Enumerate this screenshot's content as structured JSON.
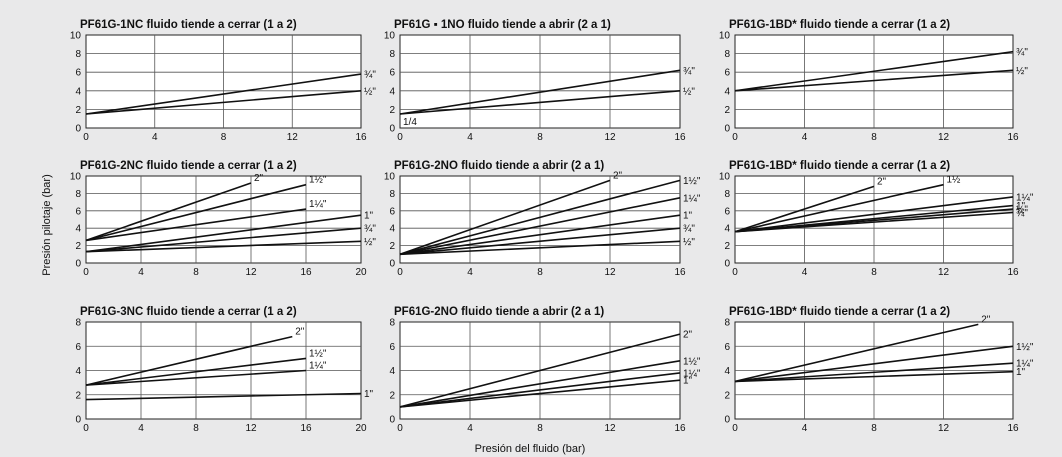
{
  "figure": {
    "ylabel": "Presión pilotaje (bar)",
    "xlabel": "Presión del fluido  (bar)"
  },
  "chart_data": [
    {
      "type": "line",
      "title": "PF61G-1NC fluido tiende a cerrar (1 a 2)",
      "xlim": [
        0,
        16
      ],
      "ylim": [
        0,
        10
      ],
      "xticks": [
        0,
        4,
        8,
        12,
        16
      ],
      "yticks": [
        0,
        2,
        4,
        6,
        8,
        10
      ],
      "series": [
        {
          "name": "¾\"",
          "x": [
            0,
            16
          ],
          "y": [
            1.5,
            5.8
          ]
        },
        {
          "name": "½\"",
          "x": [
            0,
            16
          ],
          "y": [
            1.5,
            4.0
          ]
        }
      ]
    },
    {
      "type": "line",
      "title": "PF61G ▪ 1NO fluido tiende a abrir (2 a 1)",
      "xlim": [
        0,
        16
      ],
      "ylim": [
        0,
        10
      ],
      "xticks": [
        0,
        4,
        8,
        12,
        16
      ],
      "yticks": [
        0,
        2,
        4,
        6,
        8,
        10
      ],
      "series": [
        {
          "name": "¾\"",
          "x": [
            0,
            16
          ],
          "y": [
            1.5,
            6.2
          ]
        },
        {
          "name": "½\"",
          "x": [
            0,
            16
          ],
          "y": [
            1.5,
            4.0
          ]
        },
        {
          "name": "1/4",
          "x": [
            0,
            0
          ],
          "y": [
            0,
            0
          ]
        }
      ]
    },
    {
      "type": "line",
      "title": "PF61G-1BD* fluido tiende a cerrar (1 a 2)",
      "xlim": [
        0,
        16
      ],
      "ylim": [
        0,
        10
      ],
      "xticks": [
        0,
        4,
        8,
        12,
        16
      ],
      "yticks": [
        0,
        2,
        4,
        6,
        8,
        10
      ],
      "series": [
        {
          "name": "¾\"",
          "x": [
            0,
            16
          ],
          "y": [
            4.0,
            8.2
          ]
        },
        {
          "name": "½\"",
          "x": [
            0,
            16
          ],
          "y": [
            4.0,
            6.2
          ]
        }
      ]
    },
    {
      "type": "line",
      "title": "PF61G-2NC fluido tiende a cerrar (1 a 2)",
      "xlim": [
        0,
        20
      ],
      "ylim": [
        0,
        10
      ],
      "xticks": [
        0,
        4,
        8,
        12,
        16,
        20
      ],
      "yticks": [
        0,
        2,
        4,
        6,
        8,
        10
      ],
      "series": [
        {
          "name": "2\"",
          "x": [
            0,
            12
          ],
          "y": [
            2.6,
            9.2
          ]
        },
        {
          "name": "1½\"",
          "x": [
            0,
            16
          ],
          "y": [
            2.6,
            9.0
          ]
        },
        {
          "name": "1¼\"",
          "x": [
            0,
            16
          ],
          "y": [
            2.6,
            6.2
          ]
        },
        {
          "name": "1\"",
          "x": [
            0,
            20
          ],
          "y": [
            1.3,
            5.5
          ]
        },
        {
          "name": "¾\"",
          "x": [
            0,
            20
          ],
          "y": [
            1.3,
            4.0
          ]
        },
        {
          "name": "½\"",
          "x": [
            0,
            20
          ],
          "y": [
            1.3,
            2.5
          ]
        }
      ]
    },
    {
      "type": "line",
      "title": "PF61G-2NO   fluido tiende a abrir (2 a 1)",
      "xlim": [
        0,
        16
      ],
      "ylim": [
        0,
        10
      ],
      "xticks": [
        0,
        4,
        8,
        12,
        16
      ],
      "yticks": [
        0,
        2,
        4,
        6,
        8,
        10
      ],
      "series": [
        {
          "name": "2\"",
          "x": [
            0,
            12
          ],
          "y": [
            1.0,
            9.5
          ]
        },
        {
          "name": "1½\"",
          "x": [
            0,
            16
          ],
          "y": [
            1.0,
            9.5
          ]
        },
        {
          "name": "1¼\"",
          "x": [
            0,
            16
          ],
          "y": [
            1.0,
            7.5
          ]
        },
        {
          "name": "1\"",
          "x": [
            0,
            16
          ],
          "y": [
            1.0,
            5.5
          ]
        },
        {
          "name": "¾\"",
          "x": [
            0,
            16
          ],
          "y": [
            1.0,
            4.0
          ]
        },
        {
          "name": "½\"",
          "x": [
            0,
            16
          ],
          "y": [
            1.0,
            2.5
          ]
        }
      ]
    },
    {
      "type": "line",
      "title": "PF61G-1BD* fluido tiende a cerrar (1 a 2)",
      "xlim": [
        0,
        16
      ],
      "ylim": [
        0,
        10
      ],
      "xticks": [
        0,
        4,
        8,
        12,
        16
      ],
      "yticks": [
        0,
        2,
        4,
        6,
        8,
        10
      ],
      "series": [
        {
          "name": "2\"",
          "x": [
            0,
            8
          ],
          "y": [
            3.6,
            8.8
          ]
        },
        {
          "name": "1½",
          "x": [
            0,
            12
          ],
          "y": [
            3.6,
            9.0
          ]
        },
        {
          "name": "1¼\"",
          "x": [
            0,
            16
          ],
          "y": [
            3.6,
            7.6
          ]
        },
        {
          "name": "1\"",
          "x": [
            0,
            16
          ],
          "y": [
            3.6,
            6.6
          ]
        },
        {
          "name": "¾\"",
          "x": [
            0,
            16
          ],
          "y": [
            3.6,
            5.8
          ]
        },
        {
          "name": "½\"",
          "x": [
            0,
            16
          ],
          "y": [
            3.6,
            6.2
          ]
        }
      ]
    },
    {
      "type": "line",
      "title": "PF61G-3NC fluido tiende a cerrar (1 a 2)",
      "xlim": [
        0,
        20
      ],
      "ylim": [
        0,
        8
      ],
      "xticks": [
        0,
        4,
        8,
        12,
        16,
        20
      ],
      "yticks": [
        0,
        2,
        4,
        6,
        8
      ],
      "series": [
        {
          "name": "2\"",
          "x": [
            0,
            15
          ],
          "y": [
            2.8,
            6.8
          ]
        },
        {
          "name": "1½\"",
          "x": [
            0,
            16
          ],
          "y": [
            2.8,
            5.0
          ]
        },
        {
          "name": "1¼\"",
          "x": [
            0,
            16
          ],
          "y": [
            2.8,
            4.0
          ]
        },
        {
          "name": "1\"",
          "x": [
            0,
            20
          ],
          "y": [
            1.6,
            2.1
          ]
        }
      ]
    },
    {
      "type": "line",
      "title": "PF61G-2NO    fluido tiende a abrir (2 a 1)",
      "xlim": [
        0,
        16
      ],
      "ylim": [
        0,
        8
      ],
      "xticks": [
        0,
        4,
        8,
        12,
        16
      ],
      "yticks": [
        0,
        2,
        4,
        6,
        8
      ],
      "series": [
        {
          "name": "2\"",
          "x": [
            0,
            16
          ],
          "y": [
            1.0,
            7.0
          ]
        },
        {
          "name": "1½\"",
          "x": [
            0,
            16
          ],
          "y": [
            1.0,
            4.8
          ]
        },
        {
          "name": "1¼\"",
          "x": [
            0,
            16
          ],
          "y": [
            1.0,
            3.8
          ]
        },
        {
          "name": "1\"",
          "x": [
            0,
            16
          ],
          "y": [
            1.0,
            3.2
          ]
        }
      ]
    },
    {
      "type": "line",
      "title": "PF61G-1BD* fluido tiende a cerrar (1 a 2)",
      "xlim": [
        0,
        16
      ],
      "ylim": [
        0,
        8
      ],
      "xticks": [
        0,
        4,
        8,
        12,
        16
      ],
      "yticks": [
        0,
        2,
        4,
        6,
        8
      ],
      "series": [
        {
          "name": "2\"",
          "x": [
            0,
            14
          ],
          "y": [
            3.1,
            7.8
          ]
        },
        {
          "name": "1½\"",
          "x": [
            0,
            16
          ],
          "y": [
            3.1,
            6.0
          ]
        },
        {
          "name": "1¼\"",
          "x": [
            0,
            16
          ],
          "y": [
            3.1,
            4.6
          ]
        },
        {
          "name": "1\"",
          "x": [
            0,
            16
          ],
          "y": [
            3.1,
            3.9
          ]
        }
      ]
    }
  ]
}
